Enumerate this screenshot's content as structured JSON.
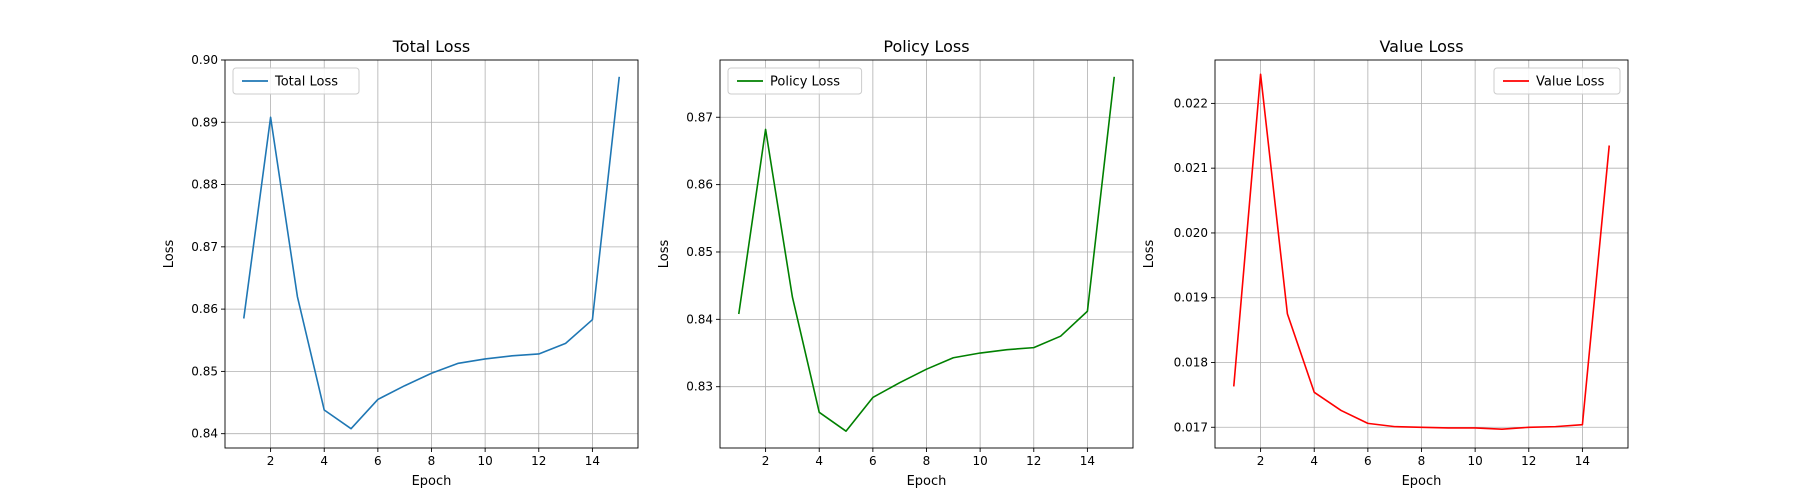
{
  "chart_data": [
    {
      "type": "line",
      "title": "Total Loss",
      "xlabel": "Epoch",
      "ylabel": "Loss",
      "xlim": [
        0.3,
        15.7
      ],
      "ylim": [
        0.8377,
        0.9
      ],
      "xticks": [
        2,
        4,
        6,
        8,
        10,
        12,
        14
      ],
      "yticks": [
        0.84,
        0.85,
        0.86,
        0.87,
        0.88,
        0.89,
        0.9
      ],
      "ytick_labels": [
        "0.84",
        "0.85",
        "0.86",
        "0.87",
        "0.88",
        "0.89",
        "0.90"
      ],
      "grid": true,
      "legend_position": "upper-left",
      "series": [
        {
          "name": "Total Loss",
          "color": "#1f77b4",
          "x": [
            1,
            2,
            3,
            4,
            5,
            6,
            7,
            8,
            9,
            10,
            11,
            12,
            13,
            14,
            15
          ],
          "y": [
            0.8585,
            0.8908,
            0.862,
            0.8438,
            0.8408,
            0.8455,
            0.8477,
            0.8497,
            0.8513,
            0.852,
            0.8525,
            0.8528,
            0.8545,
            0.8583,
            0.8973
          ]
        }
      ]
    },
    {
      "type": "line",
      "title": "Policy Loss",
      "xlabel": "Epoch",
      "ylabel": "Loss",
      "xlim": [
        0.3,
        15.7
      ],
      "ylim": [
        0.8209,
        0.8785
      ],
      "xticks": [
        2,
        4,
        6,
        8,
        10,
        12,
        14
      ],
      "yticks": [
        0.83,
        0.84,
        0.85,
        0.86,
        0.87
      ],
      "ytick_labels": [
        "0.83",
        "0.84",
        "0.85",
        "0.86",
        "0.87"
      ],
      "grid": true,
      "legend_position": "upper-left",
      "series": [
        {
          "name": "Policy Loss",
          "color": "#008000",
          "x": [
            1,
            2,
            3,
            4,
            5,
            6,
            7,
            8,
            9,
            10,
            11,
            12,
            13,
            14,
            15
          ],
          "y": [
            0.8408,
            0.8682,
            0.8433,
            0.8262,
            0.8234,
            0.8284,
            0.8306,
            0.8326,
            0.8343,
            0.835,
            0.8355,
            0.8358,
            0.8375,
            0.8412,
            0.876
          ]
        }
      ]
    },
    {
      "type": "line",
      "title": "Value Loss",
      "xlabel": "Epoch",
      "ylabel": "Loss",
      "xlim": [
        0.3,
        15.7
      ],
      "ylim": [
        0.01668,
        0.02267
      ],
      "xticks": [
        2,
        4,
        6,
        8,
        10,
        12,
        14
      ],
      "yticks": [
        0.017,
        0.018,
        0.019,
        0.02,
        0.021,
        0.022
      ],
      "ytick_labels": [
        "0.017",
        "0.018",
        "0.019",
        "0.020",
        "0.021",
        "0.022"
      ],
      "grid": true,
      "legend_position": "upper-right",
      "series": [
        {
          "name": "Value Loss",
          "color": "#ff0000",
          "x": [
            1,
            2,
            3,
            4,
            5,
            6,
            7,
            8,
            9,
            10,
            11,
            12,
            13,
            14,
            15
          ],
          "y": [
            0.01763,
            0.02245,
            0.01875,
            0.01754,
            0.01726,
            0.01706,
            0.01701,
            0.017,
            0.01699,
            0.01699,
            0.01697,
            0.017,
            0.01701,
            0.01704,
            0.02135
          ]
        }
      ]
    }
  ]
}
